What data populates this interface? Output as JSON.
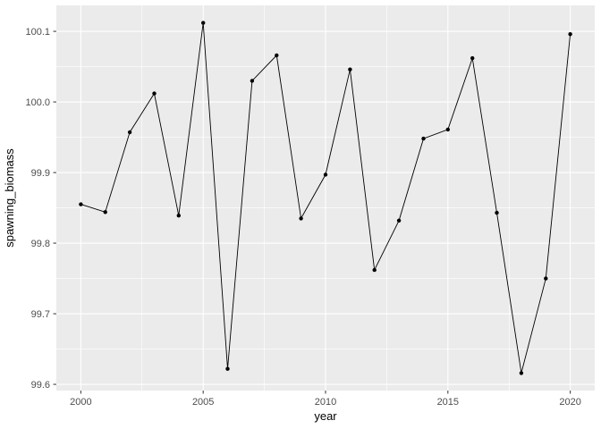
{
  "chart_data": {
    "type": "line",
    "title": "",
    "xlabel": "year",
    "ylabel": "spawning_biomass",
    "x": [
      2000,
      2001,
      2002,
      2003,
      2004,
      2005,
      2006,
      2007,
      2008,
      2009,
      2010,
      2011,
      2012,
      2013,
      2014,
      2015,
      2016,
      2017,
      2018,
      2019,
      2020
    ],
    "values": [
      99.855,
      99.844,
      99.957,
      100.012,
      99.839,
      100.112,
      99.622,
      100.03,
      100.066,
      99.835,
      99.897,
      100.046,
      99.762,
      99.832,
      99.948,
      99.961,
      100.062,
      99.843,
      99.616,
      99.75,
      100.096
    ],
    "xlim": [
      1999,
      2021
    ],
    "ylim": [
      99.5912,
      100.1368
    ],
    "x_major_ticks": [
      2000,
      2005,
      2010,
      2015,
      2020
    ],
    "x_tick_labels": [
      "2000",
      "2005",
      "2010",
      "2015",
      "2020"
    ],
    "x_minor_ticks": [
      2002.5,
      2007.5,
      2012.5,
      2017.5
    ],
    "y_major_ticks": [
      99.6,
      99.7,
      99.8,
      99.9,
      100.0,
      100.1
    ],
    "y_tick_labels": [
      "99.6",
      "99.7",
      "99.8",
      "99.9",
      "100.0",
      "100.1"
    ],
    "y_minor_ticks": [
      99.65,
      99.75,
      99.85,
      99.95,
      100.05
    ],
    "legend": "none",
    "grid": true,
    "marker": "point",
    "style": {
      "background": "#FFFFFF",
      "panel_fill": "#EBEBEB",
      "grid_color": "#FFFFFF",
      "line_color": "#000000",
      "point_color": "#000000",
      "tick_label_color": "#4D4D4D",
      "axis_title_color": "#000000",
      "tick_mark_color": "#333333"
    }
  }
}
